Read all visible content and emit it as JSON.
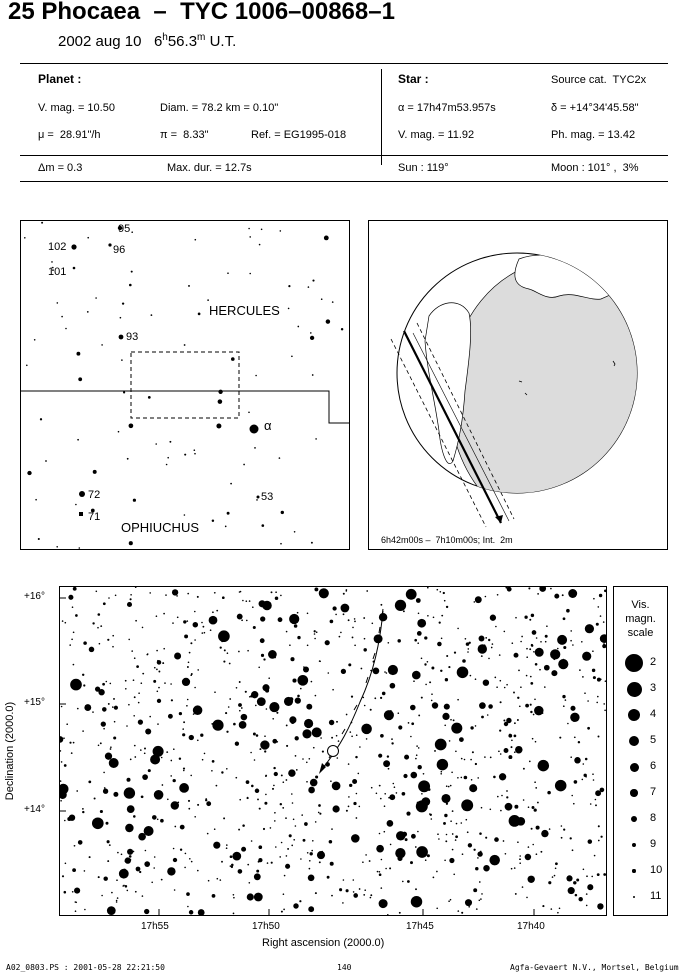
{
  "header": {
    "title": "25 Phocaea  –  TYC 1006–00868–1",
    "date": "2002 aug 10",
    "time_h": "6",
    "time_h_sup": "h",
    "time_m": "56.3",
    "time_m_sup": "m",
    "time_zone": "U.T."
  },
  "info": {
    "planet_heading": "Planet :",
    "star_heading": "Star :",
    "source_cat": "Source cat.  TYC2x",
    "vmag_planet": "V. mag. = 10.50",
    "diam": "Diam. = 78.2 km = 0.10\"",
    "ra": "α = 17h47m53.957s",
    "dec": "δ = +14°34'45.58\"",
    "mu": "μ =  28.91\"/h",
    "pi": "π =  8.33\"",
    "ref": "Ref. = EG1995-018",
    "vmag_star": "V. mag. = 11.92",
    "phmag": "Ph. mag. = 13.42",
    "dm": "Δm = 0.3",
    "maxdur": "Max. dur. = 12.7s",
    "sun": "Sun : 119°",
    "moon": "Moon : 101° ,  3%"
  },
  "finder": {
    "labels": [
      "95",
      "96",
      "102",
      "101",
      "93",
      "72",
      "71",
      "53"
    ],
    "constellation_1": "HERCULES",
    "constellation_2": "OPHIUCHUS",
    "alpha": "α"
  },
  "globe": {
    "caption": "6h42m00s –  7h10m00s; Int.  2m"
  },
  "starchart": {
    "yticks": [
      "+16°",
      "+15°",
      "+14°"
    ],
    "xticks": [
      "17h55",
      "17h50",
      "17h45",
      "17h40"
    ],
    "ylabel": "Declination (2000.0)",
    "xlabel": "Right ascension (2000.0)"
  },
  "magscale": {
    "title": [
      "Vis.",
      "magn.",
      "scale"
    ],
    "values": [
      "2",
      "3",
      "4",
      "5",
      "6",
      "7",
      "8",
      "9",
      "10",
      "11"
    ]
  },
  "footer": {
    "left": "A02_0803.PS : 2001-05-28 22:21:50",
    "center": "140",
    "right": "Agfa-Gevaert N.V., Mortsel, Belgium"
  }
}
